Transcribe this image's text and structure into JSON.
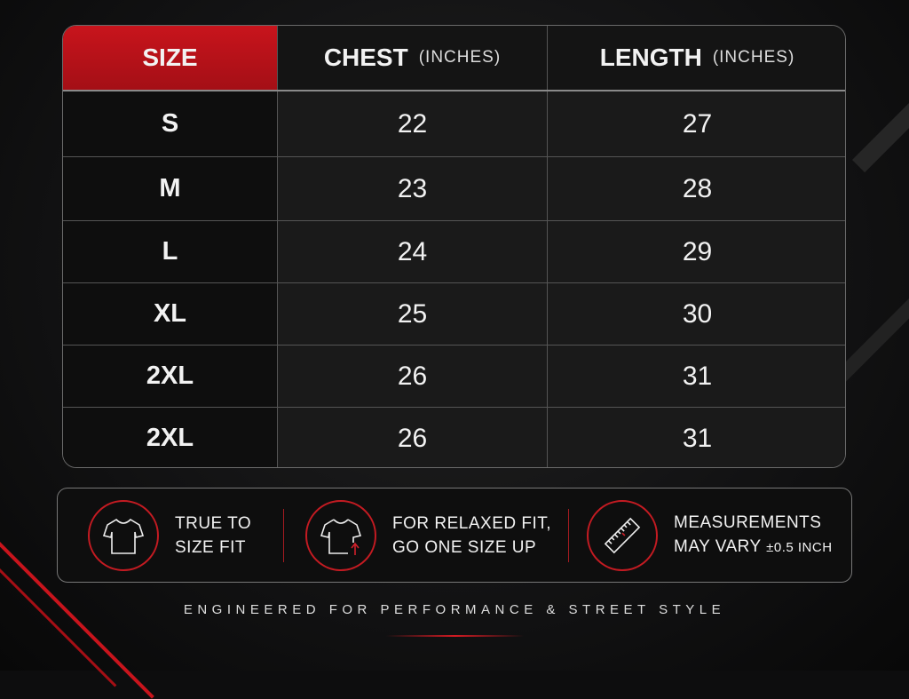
{
  "colors": {
    "accent": "#c8141c",
    "background": "#131314"
  },
  "table": {
    "headers": [
      {
        "label": "SIZE",
        "unit": ""
      },
      {
        "label": "CHEST",
        "unit": "(INCHES)"
      },
      {
        "label": "LENGTH",
        "unit": "(INCHES)"
      }
    ],
    "rows": [
      {
        "size": "S",
        "chest": "22",
        "length": "27"
      },
      {
        "size": "M",
        "chest": "23",
        "length": "28"
      },
      {
        "size": "L",
        "chest": "24",
        "length": "29"
      },
      {
        "size": "XL",
        "chest": "25",
        "length": "30"
      },
      {
        "size": "2XL",
        "chest": "26",
        "length": "31"
      },
      {
        "size": "2XL",
        "chest": "26",
        "length": "31"
      }
    ]
  },
  "features": [
    {
      "icon": "tshirt-icon",
      "line1": "TRUE TO",
      "line2": "SIZE FIT"
    },
    {
      "icon": "tshirt-size-up-icon",
      "line1": "FOR RELAXED FIT,",
      "line2": "GO ONE SIZE UP"
    },
    {
      "icon": "ruler-icon",
      "line1": "MEASUREMENTS",
      "line2": "MAY VARY",
      "line2_extra": "±0.5 INCH"
    }
  ],
  "footer": "ENGINEERED FOR PERFORMANCE & STREET STYLE"
}
